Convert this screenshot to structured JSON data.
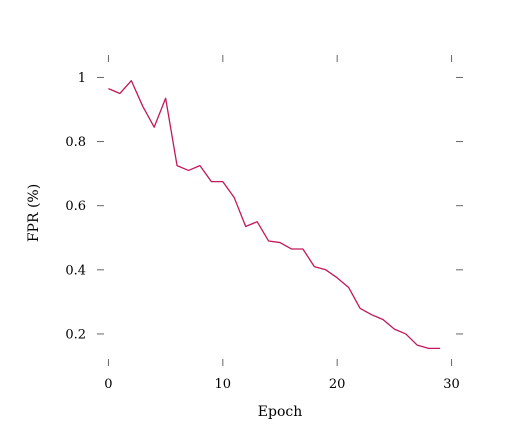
{
  "chart_data": {
    "type": "line",
    "title": "",
    "xlabel": "Epoch",
    "ylabel": "FPR (%)",
    "xlim": [
      -1,
      31
    ],
    "ylim": [
      0.1,
      1.07
    ],
    "grid": false,
    "legend": "none",
    "x_ticks": [
      0,
      10,
      20,
      30
    ],
    "y_ticks": [
      0.2,
      0.4,
      0.6,
      0.8,
      1.0
    ],
    "x_tick_labels": [
      "0",
      "10",
      "20",
      "30"
    ],
    "y_tick_labels": [
      "0.2",
      "0.4",
      "0.6",
      "0.8",
      "1"
    ],
    "series": [
      {
        "color": "#c2185b",
        "x": [
          0,
          1,
          2,
          3,
          4,
          5,
          6,
          7,
          8,
          9,
          10,
          11,
          12,
          13,
          14,
          15,
          16,
          17,
          18,
          19,
          20,
          21,
          22,
          23,
          24,
          25,
          26,
          27,
          28,
          29
        ],
        "y": [
          0.965,
          0.95,
          0.99,
          0.91,
          0.845,
          0.935,
          0.725,
          0.71,
          0.725,
          0.675,
          0.675,
          0.625,
          0.535,
          0.55,
          0.49,
          0.485,
          0.465,
          0.465,
          0.41,
          0.4,
          0.375,
          0.345,
          0.28,
          0.26,
          0.245,
          0.215,
          0.2,
          0.165,
          0.155,
          0.155
        ]
      }
    ]
  }
}
